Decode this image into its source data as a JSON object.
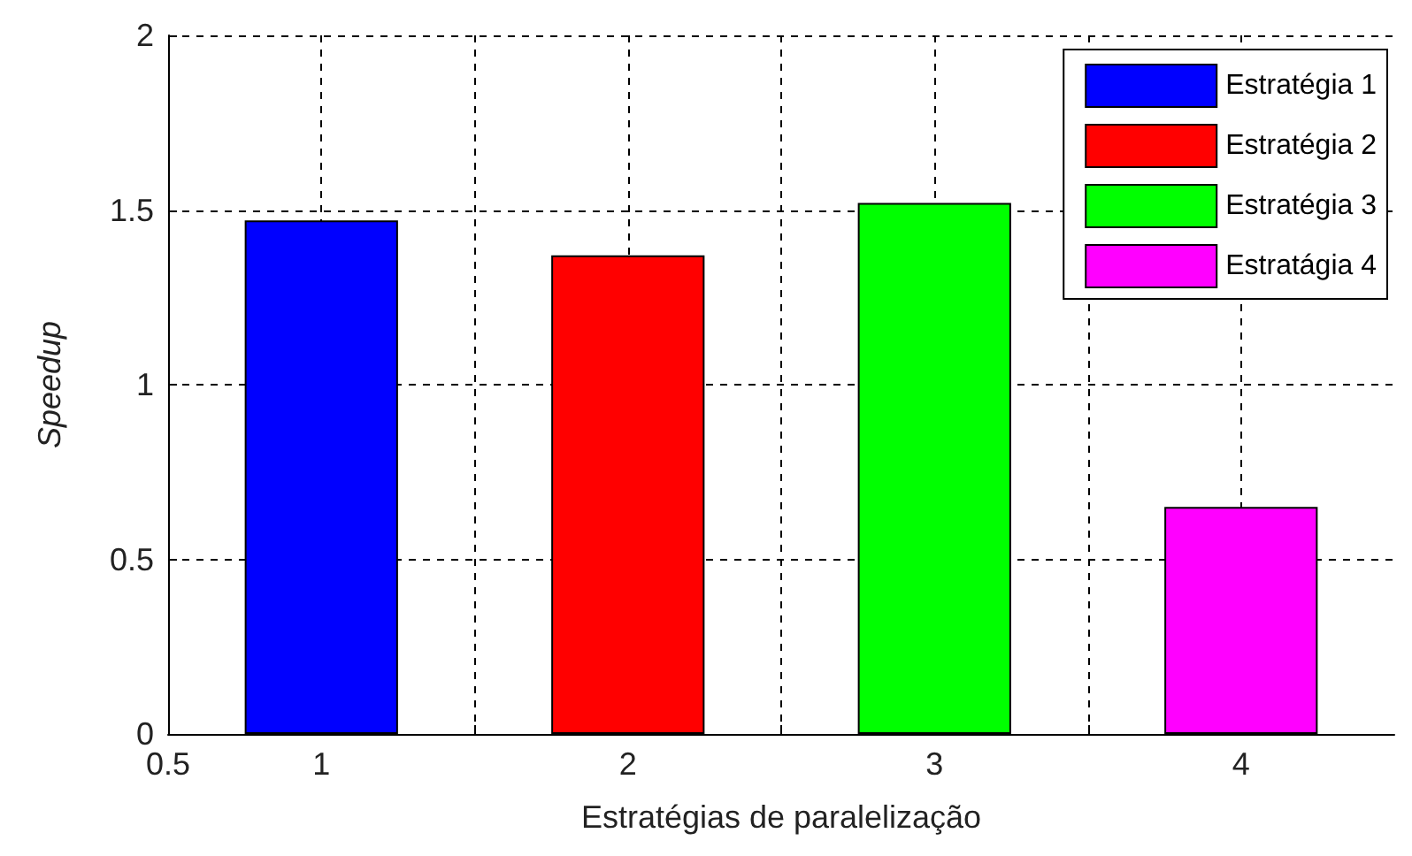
{
  "chart_data": {
    "type": "bar",
    "xlabel": "Estratégias de paralelização",
    "ylabel": "Speedup",
    "xlim": [
      0.5,
      4.5
    ],
    "xticks": [
      0.5,
      1,
      {
        "value": 1.5,
        "label": null
      },
      2,
      {
        "value": 2.5,
        "label": null
      },
      3,
      {
        "value": 3.5,
        "label": null
      },
      4
    ],
    "ylim": [
      0,
      2
    ],
    "yticks": [
      0,
      0.5,
      1,
      1.5,
      2
    ],
    "grid": true,
    "legend": "top right",
    "series": [
      {
        "name": "Estratégia 1",
        "color": "#0000ff",
        "x": [
          1
        ],
        "values": [
          1.47
        ]
      },
      {
        "name": "Estratégia 2",
        "color": "#ff0000",
        "x": [
          2
        ],
        "values": [
          1.37
        ]
      },
      {
        "name": "Estratégia 3",
        "color": "#00ff00",
        "x": [
          3
        ],
        "values": [
          1.52
        ]
      },
      {
        "name": "Estratágia 4",
        "color": "#ff00ff",
        "x": [
          4
        ],
        "values": [
          0.65
        ]
      }
    ]
  }
}
